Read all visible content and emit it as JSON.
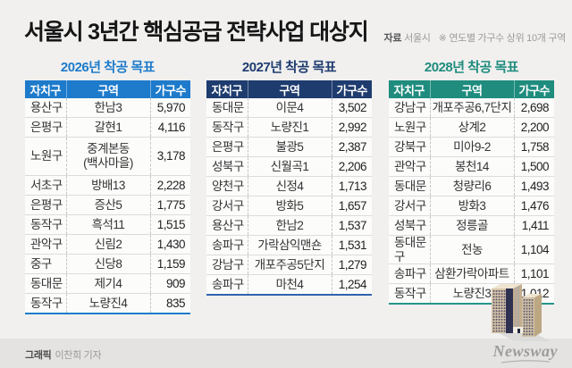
{
  "header": {
    "title": "서울시 3년간 핵심공급 전략사업 대상지",
    "source_label": "자료",
    "source_value": "서울시",
    "note": "※ 연도별 가구수 상위 10개 구역"
  },
  "colors": {
    "blue_2026": "#1e7bcb",
    "navy_2027": "#1e3c6e",
    "teal_2028": "#1f8c7e",
    "page_bg": "#f1f0ef",
    "footer_bg": "#e4e3e2",
    "row_bg": "#fcfcfb"
  },
  "chart_data": [
    {
      "type": "table",
      "title": "2026년 착공 목표",
      "theme": "#1e7bcb",
      "border": "#1e7bcb",
      "columns": [
        "자치구",
        "구역",
        "가구수"
      ],
      "rows": [
        [
          "용산구",
          "한남3",
          "5,970"
        ],
        [
          "은평구",
          "갈현1",
          "4,116"
        ],
        [
          "노원구",
          "중계본동\n(백사마을)",
          "3,178"
        ],
        [
          "서초구",
          "방배13",
          "2,228"
        ],
        [
          "은평구",
          "증산5",
          "1,775"
        ],
        [
          "동작구",
          "흑석11",
          "1,515"
        ],
        [
          "관악구",
          "신림2",
          "1,430"
        ],
        [
          "중구",
          "신당8",
          "1,159"
        ],
        [
          "동대문",
          "제기4",
          "909"
        ],
        [
          "동작구",
          "노량진4",
          "835"
        ]
      ]
    },
    {
      "type": "table",
      "title": "2027년 착공 목표",
      "theme": "#1e3c6e",
      "border": "#2f64ad",
      "columns": [
        "자치구",
        "구역",
        "가구수"
      ],
      "rows": [
        [
          "동대문",
          "이문4",
          "3,502"
        ],
        [
          "동작구",
          "노량진1",
          "2,992"
        ],
        [
          "은평구",
          "불광5",
          "2,387"
        ],
        [
          "성북구",
          "신월곡1",
          "2,206"
        ],
        [
          "양천구",
          "신정4",
          "1,713"
        ],
        [
          "강서구",
          "방화5",
          "1,657"
        ],
        [
          "용산구",
          "한남2",
          "1,537"
        ],
        [
          "송파구",
          "가락삼익맨숀",
          "1,531"
        ],
        [
          "강남구",
          "개포주공5단지",
          "1,279"
        ],
        [
          "송파구",
          "마천4",
          "1,254"
        ]
      ]
    },
    {
      "type": "table",
      "title": "2028년 착공 목표",
      "theme": "#1f8c7e",
      "border": "#27958a",
      "columns": [
        "자치구",
        "구역",
        "가구수"
      ],
      "rows": [
        [
          "강남구",
          "개포주공6,7단지",
          "2,698"
        ],
        [
          "노원구",
          "상계2",
          "2,200"
        ],
        [
          "강북구",
          "미아9-2",
          "1,758"
        ],
        [
          "관악구",
          "봉천14",
          "1,500"
        ],
        [
          "동대문",
          "청량리6",
          "1,493"
        ],
        [
          "강서구",
          "방화3",
          "1,476"
        ],
        [
          "성북구",
          "정릉골",
          "1,411"
        ],
        [
          "동대문구",
          "전농",
          "1,104"
        ],
        [
          "송파구",
          "삼환가락아파트",
          "1,101"
        ],
        [
          "동작구",
          "노량진3",
          "1,012"
        ]
      ]
    }
  ],
  "footer": {
    "credit_label": "그래픽",
    "credit_value": "이찬희 기자",
    "brand": "Newsway"
  }
}
